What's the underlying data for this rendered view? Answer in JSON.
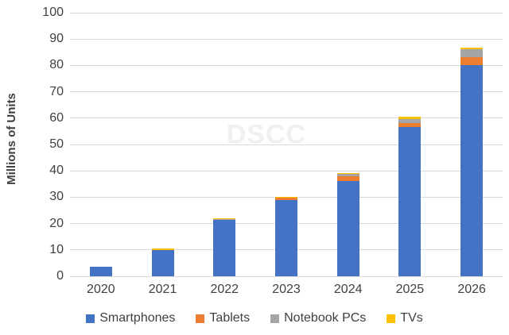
{
  "watermark": "DSCC",
  "chart_data": {
    "type": "bar",
    "stacked": true,
    "title": "",
    "xlabel": "",
    "ylabel": "Millions of Units",
    "ylim": [
      0,
      100
    ],
    "yticks": [
      0,
      10,
      20,
      30,
      40,
      50,
      60,
      70,
      80,
      90,
      100
    ],
    "grid": true,
    "legend_position": "bottom",
    "categories": [
      "2020",
      "2021",
      "2022",
      "2023",
      "2024",
      "2025",
      "2026"
    ],
    "series": [
      {
        "name": "Smartphones",
        "color": "#4472C4",
        "values": [
          3.5,
          9.9,
          21.3,
          29.0,
          36.1,
          56.5,
          80.0
        ]
      },
      {
        "name": "Tablets",
        "color": "#ED7D31",
        "values": [
          0,
          0.1,
          0.2,
          0.7,
          1.9,
          1.7,
          3.0
        ]
      },
      {
        "name": "Notebook PCs",
        "color": "#A5A5A5",
        "values": [
          0,
          0,
          0.1,
          0.1,
          0.9,
          1.5,
          3.1
        ]
      },
      {
        "name": "TVs",
        "color": "#FFC000",
        "values": [
          0,
          0.5,
          0.5,
          0.3,
          0.4,
          0.9,
          0.6
        ]
      }
    ],
    "totals": [
      3.5,
      10.5,
      22.1,
      30.1,
      39.3,
      60.6,
      86.7
    ]
  },
  "colors": {
    "background": "#FFFFFF",
    "gridline": "#D9D9D9",
    "axis_text": "#404040",
    "watermark_text": "#F0F0F1"
  }
}
